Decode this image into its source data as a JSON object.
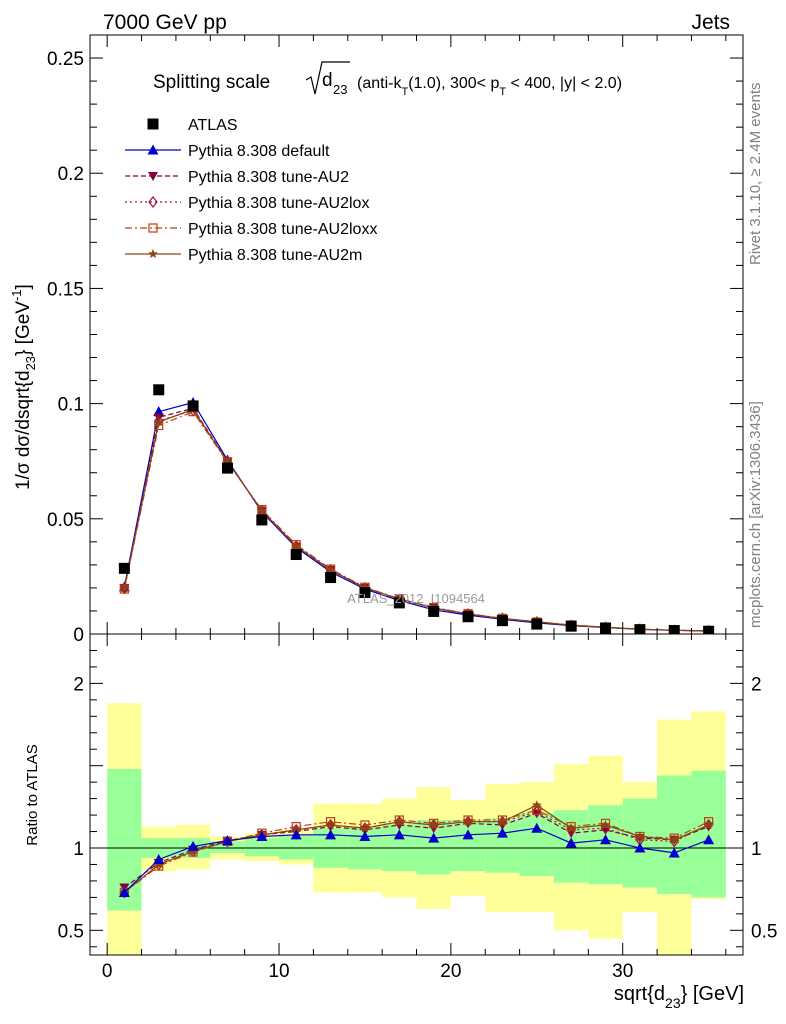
{
  "header": {
    "left": "7000 GeV pp",
    "right": "Jets"
  },
  "side_labels": {
    "rivet": "Rivet 3.1.10, ≥ 2.4M events",
    "mcplots": "mcplots.cern.ch [arXiv:1306.3436]"
  },
  "watermark": "ATLAS_2012_I1094564",
  "title": {
    "prefix": "Splitting scale",
    "sqrt_arg": "d",
    "sqrt_sub": "23",
    "suffix_parts": [
      "(anti-k",
      "T",
      "(1.0), 300< p",
      "T",
      " < 400, |y| < 2.0)"
    ]
  },
  "colors": {
    "data": "#000000",
    "default": "#0000cc",
    "au2": "#800040",
    "au2lox": "#a0103a",
    "au2loxx": "#c04010",
    "au2m": "#8b4513",
    "band_inner": "#99ff99",
    "band_outer": "#ffff99"
  },
  "chart_data": [
    {
      "type": "scatter",
      "panel": "main",
      "xlabel_main": "sqrt{d",
      "xlabel_sub": "23",
      "xlabel_tail": "} [GeV]",
      "ylabel": "1/σ dσ/dsqrt{d23} [GeV⁻¹]",
      "xlim": [
        -1,
        37
      ],
      "ylim": [
        0,
        0.26
      ],
      "x_ticks": [
        0,
        10,
        20,
        30
      ],
      "y_ticks": [
        0,
        0.05,
        0.1,
        0.15,
        0.2,
        0.25
      ],
      "y_tick_labels": [
        "0",
        "0.05",
        "0.1",
        "0.15",
        "0.2",
        "0.25"
      ],
      "x": [
        1,
        3,
        5,
        7,
        9,
        11,
        13,
        15,
        17,
        19,
        21,
        23,
        25,
        27,
        29,
        31,
        33,
        35
      ],
      "legend_position": "top-left",
      "series": [
        {
          "key": "data",
          "name": "ATLAS",
          "marker": "square-filled",
          "line": "none",
          "values": [
            0.0285,
            0.106,
            0.099,
            0.072,
            0.0495,
            0.0345,
            0.0245,
            0.018,
            0.0135,
            0.0098,
            0.0075,
            0.0058,
            0.0043,
            0.0034,
            0.0026,
            0.0019,
            0.0015,
            0.0012
          ]
        },
        {
          "key": "default",
          "name": "Pythia 8.308 default",
          "marker": "triangle-up-filled",
          "line": "solid",
          "values": [
            0.0205,
            0.0965,
            0.1005,
            0.0755,
            0.053,
            0.0375,
            0.027,
            0.0195,
            0.0145,
            0.0105,
            0.0082,
            0.0064,
            0.0048,
            0.0036,
            0.0028,
            0.002,
            0.0016,
            0.0012
          ]
        },
        {
          "key": "au2",
          "name": "Pythia 8.308 tune-AU2",
          "marker": "triangle-down-filled",
          "line": "dashed",
          "values": [
            0.02,
            0.094,
            0.098,
            0.075,
            0.0535,
            0.038,
            0.0278,
            0.02,
            0.0152,
            0.0113,
            0.0087,
            0.0067,
            0.0052,
            0.0037,
            0.0029,
            0.0021,
            0.0016,
            0.0014
          ]
        },
        {
          "key": "au2lox",
          "name": "Pythia 8.308 tune-AU2lox",
          "marker": "diamond-open",
          "line": "dotted",
          "values": [
            0.0198,
            0.0925,
            0.097,
            0.0748,
            0.0535,
            0.0382,
            0.0278,
            0.02,
            0.015,
            0.0113,
            0.0087,
            0.0068,
            0.0052,
            0.0037,
            0.0029,
            0.0021,
            0.0016,
            0.0014
          ]
        },
        {
          "key": "au2loxx",
          "name": "Pythia 8.308 tune-AU2loxx",
          "marker": "square-open",
          "line": "dashdot",
          "values": [
            0.0195,
            0.0905,
            0.0965,
            0.0745,
            0.054,
            0.0388,
            0.0282,
            0.0203,
            0.0153,
            0.0115,
            0.0088,
            0.0068,
            0.0052,
            0.0039,
            0.003,
            0.0021,
            0.0016,
            0.0014
          ]
        },
        {
          "key": "au2m",
          "name": "Pythia 8.308 tune-AU2m",
          "marker": "star",
          "line": "solid",
          "values": [
            0.0198,
            0.092,
            0.0975,
            0.0748,
            0.0535,
            0.0382,
            0.0278,
            0.0201,
            0.0152,
            0.0113,
            0.0087,
            0.0067,
            0.0054,
            0.0038,
            0.0029,
            0.0021,
            0.0016,
            0.0014
          ]
        }
      ]
    },
    {
      "type": "line",
      "panel": "ratio",
      "ylabel": "Ratio to ATLAS",
      "xlim": [
        -1,
        37
      ],
      "ylim": [
        0.35,
        2.3
      ],
      "x_ticks": [
        0,
        10,
        20,
        30
      ],
      "y_ticks": [
        0.5,
        1,
        2
      ],
      "y_tick_labels": [
        "0.5",
        "1",
        "2"
      ],
      "x_tick_labels": [
        "0",
        "10",
        "20",
        "30"
      ],
      "bin_edges": [
        0,
        2,
        4,
        6,
        8,
        10,
        12,
        14,
        16,
        18,
        20,
        22,
        24,
        26,
        28,
        30,
        32,
        34,
        36
      ],
      "band_inner": {
        "lo": [
          0.62,
          0.94,
          0.94,
          0.97,
          0.95,
          0.93,
          0.88,
          0.87,
          0.86,
          0.84,
          0.86,
          0.85,
          0.83,
          0.79,
          0.78,
          0.76,
          0.72,
          0.7
        ],
        "hi": [
          1.48,
          1.06,
          1.06,
          1.04,
          1.06,
          1.08,
          1.12,
          1.13,
          1.15,
          1.17,
          1.17,
          1.18,
          1.21,
          1.23,
          1.26,
          1.3,
          1.44,
          1.47
        ]
      },
      "band_outer": {
        "lo": [
          0.3,
          0.86,
          0.87,
          0.93,
          0.92,
          0.9,
          0.73,
          0.73,
          0.7,
          0.63,
          0.71,
          0.61,
          0.61,
          0.5,
          0.45,
          0.61,
          0.3,
          0.69
        ],
        "hi": [
          1.88,
          1.13,
          1.14,
          1.07,
          1.09,
          1.11,
          1.27,
          1.27,
          1.3,
          1.37,
          1.29,
          1.39,
          1.4,
          1.51,
          1.56,
          1.4,
          1.78,
          1.83
        ]
      },
      "series": [
        {
          "key": "default",
          "values": [
            0.73,
            0.93,
            1.01,
            1.045,
            1.07,
            1.08,
            1.08,
            1.07,
            1.08,
            1.06,
            1.08,
            1.09,
            1.12,
            1.03,
            1.05,
            1.0,
            0.97,
            1.05
          ]
        },
        {
          "key": "au2",
          "values": [
            0.76,
            0.91,
            0.99,
            1.045,
            1.08,
            1.1,
            1.13,
            1.11,
            1.14,
            1.12,
            1.15,
            1.14,
            1.21,
            1.09,
            1.11,
            1.06,
            1.05,
            1.13
          ]
        },
        {
          "key": "au2lox",
          "values": [
            0.73,
            0.9,
            0.98,
            1.04,
            1.08,
            1.11,
            1.14,
            1.12,
            1.16,
            1.14,
            1.16,
            1.16,
            1.22,
            1.11,
            1.12,
            1.05,
            1.04,
            1.14
          ]
        },
        {
          "key": "au2loxx",
          "values": [
            0.73,
            0.89,
            0.975,
            1.04,
            1.09,
            1.13,
            1.16,
            1.14,
            1.17,
            1.15,
            1.17,
            1.17,
            1.23,
            1.13,
            1.15,
            1.07,
            1.06,
            1.16
          ]
        },
        {
          "key": "au2m",
          "values": [
            0.73,
            0.9,
            0.98,
            1.04,
            1.08,
            1.11,
            1.14,
            1.12,
            1.16,
            1.14,
            1.16,
            1.16,
            1.26,
            1.12,
            1.14,
            1.07,
            1.05,
            1.14
          ]
        }
      ]
    }
  ]
}
